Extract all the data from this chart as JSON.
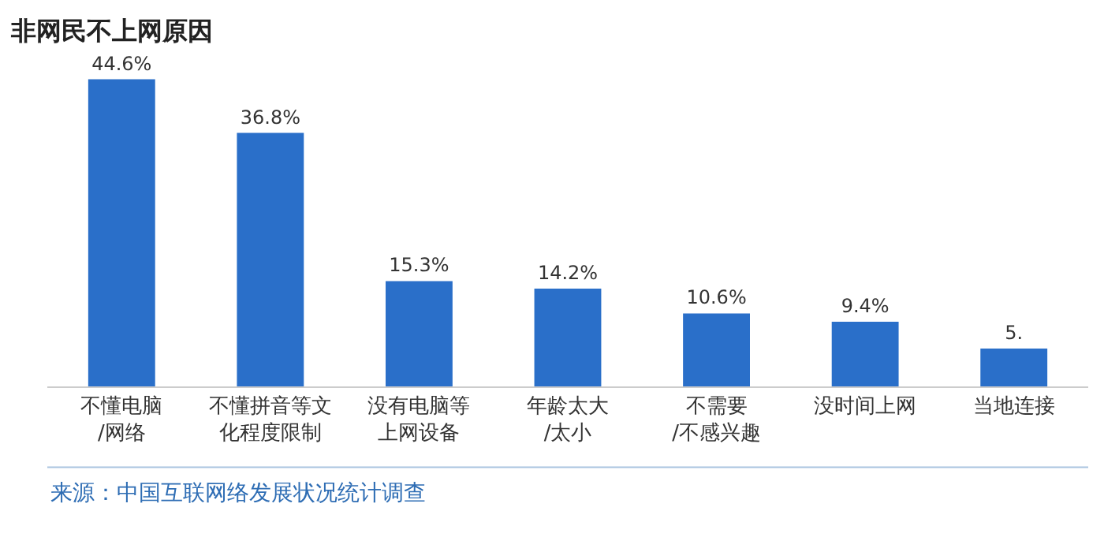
{
  "chart_data": {
    "type": "bar",
    "title": "非网民不上网原因",
    "categories": [
      "不懂电脑/网络",
      "不懂拼音等文化程度限制",
      "没有电脑等上网设备",
      "年龄太大/太小",
      "不需要/不感兴趣",
      "没时间上网",
      "当地连接"
    ],
    "values": [
      44.6,
      36.8,
      15.3,
      14.2,
      10.6,
      9.4,
      5.5
    ],
    "value_labels": [
      "44.6%",
      "36.8%",
      "15.3%",
      "14.2%",
      "10.6%",
      "9.4%",
      "5."
    ],
    "color": "#2a6fc9",
    "grid": false,
    "annotations": [
      "来源：中国互联网络发展状况统计调查"
    ]
  }
}
